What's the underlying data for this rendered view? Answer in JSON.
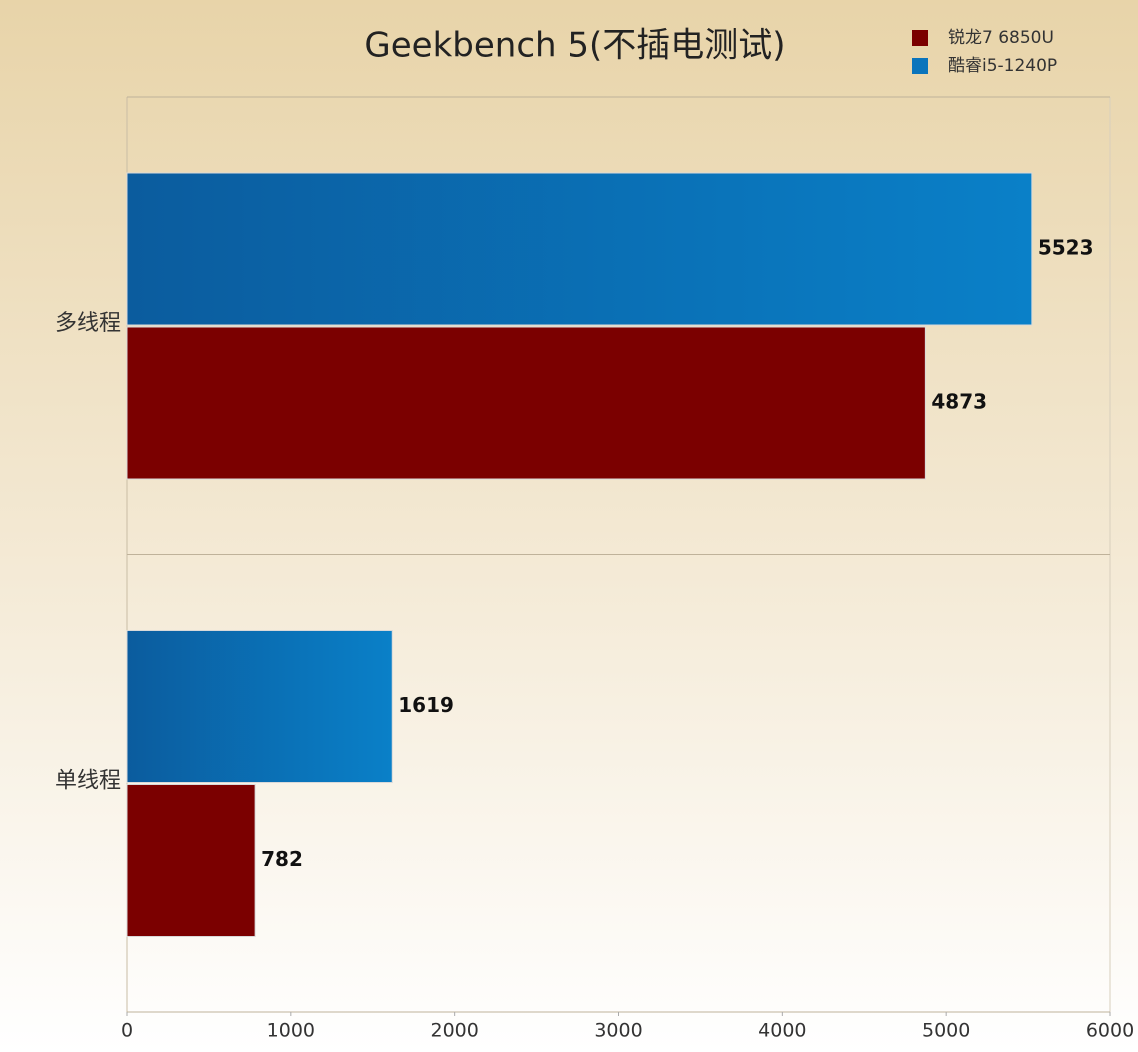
{
  "chart_data": {
    "type": "bar",
    "orientation": "horizontal",
    "title": "Geekbench 5(不插电测试)",
    "categories": [
      "多线程",
      "单线程"
    ],
    "series": [
      {
        "name": "锐龙7 6850U",
        "color": "#7b0000",
        "values": [
          4873,
          782
        ]
      },
      {
        "name": "酷睿i5-1240P",
        "color": "#0a74bc",
        "values": [
          5523,
          1619
        ]
      }
    ],
    "xlim": [
      0,
      6000
    ],
    "xticks": [
      0,
      1000,
      2000,
      3000,
      4000,
      5000,
      6000
    ],
    "legend": "top-right"
  }
}
